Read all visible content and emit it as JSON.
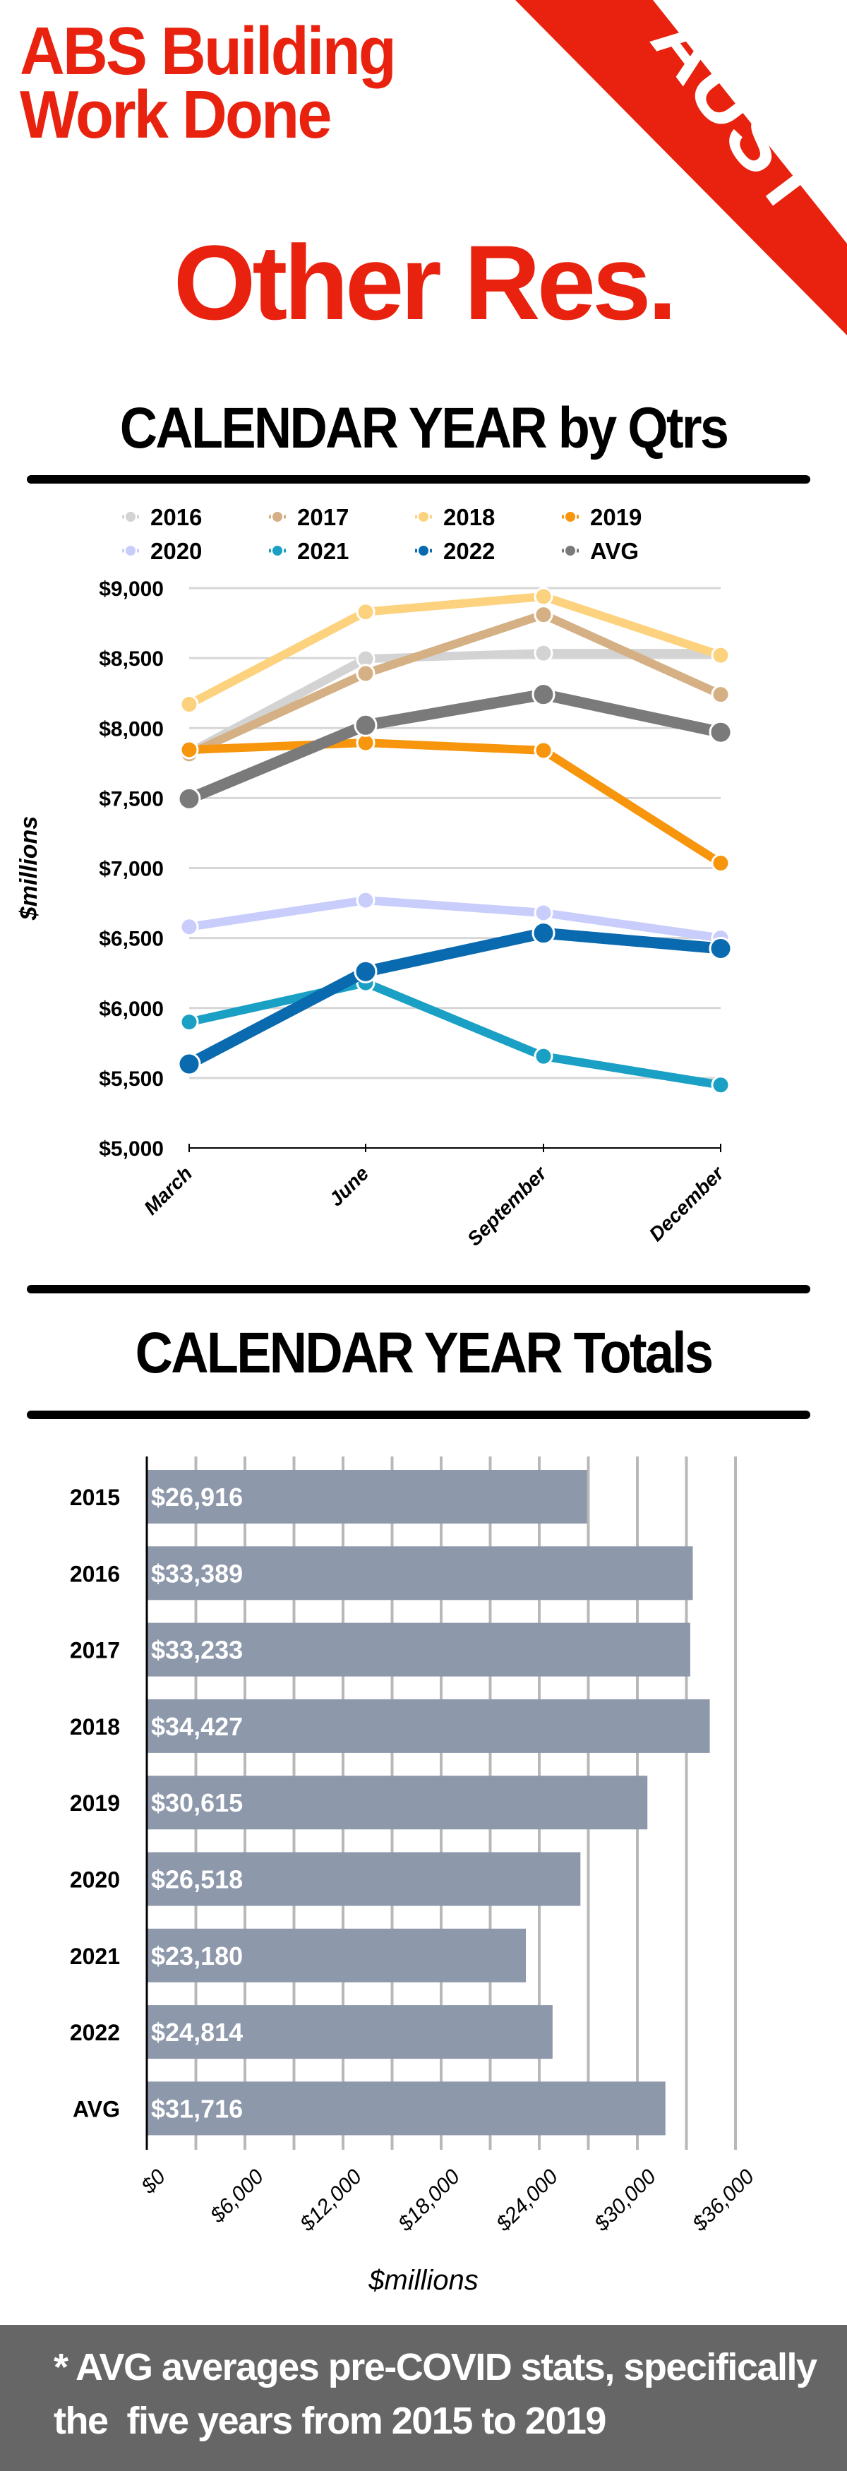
{
  "header": {
    "title_line1": "ABS Building",
    "title_line2": "Work Done",
    "subtitle": "Other Res.",
    "banner": "AUST",
    "accent_color": "#e8220f"
  },
  "section1": {
    "heading": "CALENDAR YEAR by Qtrs"
  },
  "section2": {
    "heading": "CALENDAR YEAR Totals"
  },
  "footer": {
    "note": "* AVG averages pre-COVID stats, specifically\nthe  five years from 2015 to 2019"
  },
  "chart_data": [
    {
      "type": "line",
      "title": "CALENDAR YEAR by Qtrs",
      "xlabel": "",
      "ylabel": "$millions",
      "categories": [
        "March",
        "June",
        "September",
        "December"
      ],
      "ylim": [
        5000,
        9000
      ],
      "yticks": [
        5000,
        5500,
        6000,
        6500,
        7000,
        7500,
        8000,
        8500,
        9000
      ],
      "ytick_labels": [
        "$5,000",
        "$5,500",
        "$6,000",
        "$6,500",
        "$7,000",
        "$7,500",
        "$8,000",
        "$8,500",
        "$9,000"
      ],
      "grid": true,
      "legend_position": "top",
      "series": [
        {
          "name": "2016",
          "color": "#d3d3d3",
          "values": [
            7825,
            8495,
            8535,
            8535
          ]
        },
        {
          "name": "2017",
          "color": "#d4b084",
          "values": [
            7815,
            8390,
            8810,
            8240
          ]
        },
        {
          "name": "2018",
          "color": "#fdd27e",
          "values": [
            8170,
            8830,
            8940,
            8520
          ]
        },
        {
          "name": "2019",
          "color": "#f7950d",
          "values": [
            7845,
            7895,
            7840,
            7035
          ]
        },
        {
          "name": "2020",
          "color": "#c8cdfb",
          "values": [
            6580,
            6770,
            6680,
            6500
          ]
        },
        {
          "name": "2021",
          "color": "#1aa0c4",
          "values": [
            5900,
            6180,
            5655,
            5450
          ]
        },
        {
          "name": "2022",
          "color": "#0a6aaf",
          "values": [
            5600,
            6260,
            6535,
            6425
          ]
        },
        {
          "name": "AVG",
          "color": "#7a7a7a",
          "values": [
            7495,
            8020,
            8240,
            7970
          ]
        }
      ]
    },
    {
      "type": "bar",
      "orientation": "horizontal",
      "title": "CALENDAR YEAR Totals",
      "xlabel": "$millions",
      "ylabel": "",
      "categories": [
        "2015",
        "2016",
        "2017",
        "2018",
        "2019",
        "2020",
        "2021",
        "2022",
        "AVG"
      ],
      "values": [
        26916,
        33389,
        33233,
        34427,
        30615,
        26518,
        23180,
        24814,
        31716
      ],
      "data_labels": [
        "$26,916",
        "$33,389",
        "$33,233",
        "$34,427",
        "$30,615",
        "$26,518",
        "$23,180",
        "$24,814",
        "$31,716"
      ],
      "xlim": [
        0,
        36000
      ],
      "xticks": [
        0,
        6000,
        12000,
        18000,
        24000,
        30000,
        36000
      ],
      "xtick_labels": [
        "$0",
        "$6,000",
        "$12,000",
        "$18,000",
        "$24,000",
        "$30,000",
        "$36,000"
      ],
      "grid": true,
      "bar_color": "#8d98ab"
    }
  ]
}
